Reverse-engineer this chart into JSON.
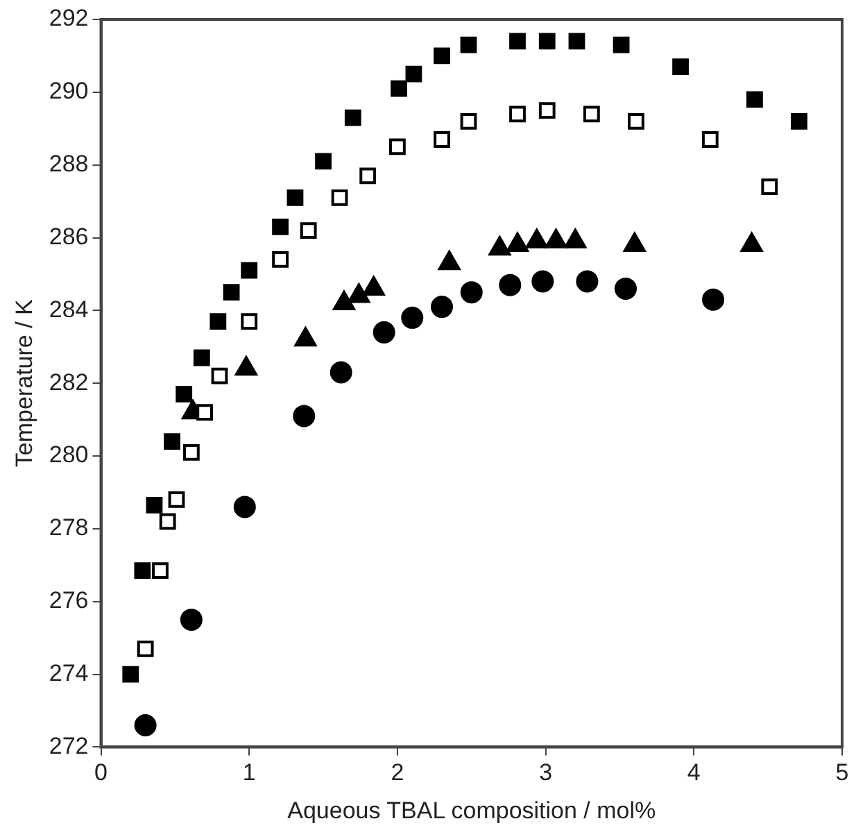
{
  "chart_data": {
    "type": "scatter",
    "xlabel": "Aqueous TBAL composition / mol%",
    "ylabel": "Temperature / K",
    "xlim": [
      0,
      5
    ],
    "xticks": [
      0,
      1,
      2,
      3,
      4,
      5
    ],
    "ylim": [
      272,
      292
    ],
    "yticks": [
      272,
      274,
      276,
      278,
      280,
      282,
      284,
      286,
      288,
      290,
      292
    ],
    "grid": false,
    "legend": false,
    "series": [
      {
        "marker": "square",
        "color": "#000000",
        "x": [
          0.2,
          0.28,
          0.36,
          0.48,
          0.56,
          0.68,
          0.79,
          0.88,
          1.0,
          1.21,
          1.31,
          1.5,
          1.7,
          2.01,
          2.11,
          2.3,
          2.48,
          2.81,
          3.01,
          3.21,
          3.51,
          3.91,
          4.41,
          4.71
        ],
        "values": [
          274.0,
          276.85,
          278.65,
          280.4,
          281.7,
          282.7,
          283.7,
          284.5,
          285.1,
          286.3,
          287.1,
          288.1,
          289.3,
          290.1,
          290.5,
          291.0,
          291.3,
          291.4,
          291.4,
          291.4,
          291.3,
          290.7,
          289.8,
          289.2
        ]
      },
      {
        "marker": "square",
        "color": "#ffffff",
        "x": [
          0.3,
          0.4,
          0.45,
          0.51,
          0.61,
          0.7,
          0.8,
          1.0,
          1.21,
          1.4,
          1.61,
          1.8,
          2.0,
          2.3,
          2.48,
          2.81,
          3.01,
          3.31,
          3.61,
          4.11,
          4.51
        ],
        "values": [
          274.7,
          276.85,
          278.2,
          278.8,
          280.1,
          281.2,
          282.2,
          283.7,
          285.4,
          286.2,
          287.1,
          287.7,
          288.5,
          288.7,
          289.2,
          289.4,
          289.5,
          289.4,
          289.2,
          288.7,
          287.4
        ]
      },
      {
        "marker": "triangle",
        "color": "#000000",
        "x": [
          0.62,
          0.98,
          1.38,
          1.64,
          1.74,
          1.84,
          2.35,
          2.69,
          2.81,
          2.94,
          3.07,
          3.2,
          3.6,
          4.39
        ],
        "values": [
          281.2,
          282.4,
          283.2,
          284.2,
          284.4,
          284.6,
          285.3,
          285.7,
          285.8,
          285.9,
          285.9,
          285.9,
          285.8,
          285.8
        ]
      },
      {
        "marker": "circle",
        "color": "#000000",
        "x": [
          0.3,
          0.61,
          0.97,
          1.37,
          1.62,
          1.91,
          2.1,
          2.3,
          2.5,
          2.76,
          2.98,
          3.28,
          3.54,
          4.13
        ],
        "values": [
          272.6,
          275.5,
          278.6,
          281.1,
          282.3,
          283.4,
          283.8,
          284.1,
          284.5,
          284.7,
          284.8,
          284.8,
          284.6,
          284.3
        ]
      }
    ]
  }
}
